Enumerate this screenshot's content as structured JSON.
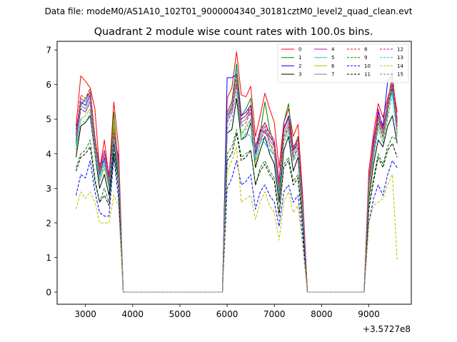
{
  "header_text": "Data file: modeM0/AS1A10_102T01_9000004340_30181cztM0_level2_quad_clean.evt",
  "chart_data": {
    "type": "line",
    "title": "Quadrant 2 module wise count rates with 100.0s bins.",
    "xlabel": "",
    "ylabel": "",
    "x_offset_label": "+3.5727e8",
    "xlim": [
      2400,
      9900
    ],
    "ylim": [
      -0.35,
      7.25
    ],
    "x_ticks": [
      3000,
      4000,
      5000,
      6000,
      7000,
      8000,
      9000
    ],
    "x_tick_labels": [
      "3000",
      "4000",
      "5000",
      "6000",
      "7000",
      "8000",
      "9000"
    ],
    "y_ticks": [
      0,
      1,
      2,
      3,
      4,
      5,
      6,
      7
    ],
    "y_tick_labels": [
      "0",
      "1",
      "2",
      "3",
      "4",
      "5",
      "6",
      "7"
    ],
    "grid": false,
    "legend_placement": "top-right",
    "legend_columns": 4,
    "x": [
      2800,
      2900,
      3000,
      3100,
      3200,
      3300,
      3400,
      3500,
      3600,
      3700,
      3800,
      3900,
      4000,
      4100,
      4200,
      4300,
      4400,
      4500,
      4600,
      4700,
      4800,
      4900,
      5000,
      5100,
      5200,
      5300,
      5400,
      5500,
      5600,
      5700,
      5800,
      5900,
      6000,
      6100,
      6200,
      6300,
      6400,
      6500,
      6600,
      6700,
      6800,
      6900,
      7000,
      7100,
      7200,
      7300,
      7400,
      7500,
      7600,
      7700,
      7800,
      7900,
      8000,
      8100,
      8200,
      8300,
      8400,
      8500,
      8600,
      8700,
      8800,
      8900,
      9000,
      9100,
      9200,
      9300,
      9400,
      9500,
      9600
    ],
    "series": [
      {
        "name": "0",
        "color": "#ff0000",
        "dash": "solid",
        "values": [
          4.8,
          6.25,
          6.1,
          5.9,
          5.3,
          3.5,
          4.4,
          3.3,
          5.5,
          4.2,
          0,
          0,
          0,
          0,
          0,
          0,
          0,
          0,
          0,
          0,
          0,
          0,
          0,
          0,
          0,
          0,
          0,
          0,
          0,
          0,
          0,
          0,
          5.6,
          5.9,
          6.95,
          5.7,
          5.65,
          5.95,
          4.5,
          5.1,
          5.75,
          5.3,
          4.9,
          3.6,
          4.9,
          5.3,
          4.5,
          4.85,
          2.8,
          0,
          0,
          0,
          0,
          0,
          0,
          0,
          0,
          0,
          0,
          0,
          0,
          0,
          3.5,
          4.6,
          5.45,
          5.05,
          5.6,
          6.1,
          5.2
        ]
      },
      {
        "name": "1",
        "color": "#008000",
        "dash": "solid",
        "values": [
          4.3,
          5.4,
          5.6,
          5.8,
          4.5,
          3.4,
          3.9,
          3.2,
          5.2,
          3.5,
          0,
          0,
          0,
          0,
          0,
          0,
          0,
          0,
          0,
          0,
          0,
          0,
          0,
          0,
          0,
          0,
          0,
          0,
          0,
          0,
          0,
          0,
          5.2,
          5.5,
          6.6,
          5.1,
          5.3,
          5.6,
          4.1,
          4.6,
          5.5,
          4.7,
          4.2,
          3.1,
          4.9,
          5.45,
          4.1,
          4.5,
          2.5,
          0,
          0,
          0,
          0,
          0,
          0,
          0,
          0,
          0,
          0,
          0,
          0,
          0,
          3.1,
          4.2,
          5.1,
          4.6,
          5.2,
          5.9,
          4.9
        ]
      },
      {
        "name": "2",
        "color": "#0000ff",
        "dash": "solid",
        "values": [
          4.7,
          5.5,
          5.4,
          5.7,
          4.3,
          3.7,
          3.8,
          3.3,
          4.8,
          3.7,
          0,
          0,
          0,
          0,
          0,
          0,
          0,
          0,
          0,
          0,
          0,
          0,
          0,
          0,
          0,
          0,
          0,
          0,
          0,
          0,
          0,
          0,
          6.2,
          6.2,
          6.3,
          5.1,
          5.2,
          5.4,
          4.0,
          4.7,
          4.6,
          4.5,
          4.3,
          3.0,
          4.7,
          5.1,
          4.1,
          4.3,
          2.6,
          0,
          0,
          0,
          0,
          0,
          0,
          0,
          0,
          0,
          0,
          0,
          0,
          0,
          3.2,
          4.4,
          5.2,
          4.8,
          6.1,
          6.3,
          4.9
        ]
      },
      {
        "name": "3",
        "color": "#000000",
        "dash": "solid",
        "values": [
          3.9,
          4.8,
          4.9,
          5.1,
          4.0,
          3.0,
          3.4,
          2.8,
          4.3,
          3.3,
          0,
          0,
          0,
          0,
          0,
          0,
          0,
          0,
          0,
          0,
          0,
          0,
          0,
          0,
          0,
          0,
          0,
          0,
          0,
          0,
          0,
          0,
          4.6,
          4.7,
          5.6,
          4.4,
          4.5,
          4.9,
          3.6,
          4.1,
          4.5,
          4.0,
          3.7,
          2.6,
          4.1,
          4.5,
          3.5,
          3.9,
          2.2,
          0,
          0,
          0,
          0,
          0,
          0,
          0,
          0,
          0,
          0,
          0,
          0,
          0,
          2.7,
          3.7,
          4.4,
          4.2,
          4.8,
          5.1,
          4.3
        ]
      },
      {
        "name": "4",
        "color": "#bf00bf",
        "dash": "solid",
        "values": [
          4.5,
          5.6,
          5.5,
          5.8,
          4.4,
          3.6,
          4.1,
          3.4,
          4.6,
          3.9,
          0,
          0,
          0,
          0,
          0,
          0,
          0,
          0,
          0,
          0,
          0,
          0,
          0,
          0,
          0,
          0,
          0,
          0,
          0,
          0,
          0,
          0,
          5.0,
          5.3,
          6.0,
          5.0,
          5.1,
          5.3,
          4.2,
          4.6,
          4.9,
          4.6,
          4.4,
          3.2,
          4.8,
          5.0,
          4.2,
          4.4,
          2.7,
          0,
          0,
          0,
          0,
          0,
          0,
          0,
          0,
          0,
          0,
          0,
          0,
          0,
          3.3,
          4.3,
          5.3,
          4.7,
          5.5,
          6.0,
          5.0
        ]
      },
      {
        "name": "5",
        "color": "#17becf",
        "dash": "solid",
        "values": [
          4.2,
          5.3,
          5.2,
          5.5,
          4.2,
          3.3,
          3.8,
          3.1,
          4.7,
          3.6,
          0,
          0,
          0,
          0,
          0,
          0,
          0,
          0,
          0,
          0,
          0,
          0,
          0,
          0,
          0,
          0,
          0,
          0,
          0,
          0,
          0,
          0,
          5.0,
          5.4,
          6.5,
          4.4,
          4.6,
          4.5,
          3.9,
          4.5,
          4.3,
          4.1,
          4.0,
          2.9,
          4.4,
          4.7,
          3.9,
          4.1,
          2.4,
          0,
          0,
          0,
          0,
          0,
          0,
          0,
          0,
          0,
          0,
          0,
          0,
          0,
          3.0,
          4.0,
          4.9,
          4.5,
          5.3,
          5.8,
          4.6
        ]
      },
      {
        "name": "6",
        "color": "#bfbf00",
        "dash": "solid",
        "values": [
          4.0,
          5.0,
          5.1,
          5.3,
          4.1,
          3.2,
          3.6,
          3.0,
          4.9,
          3.4,
          0,
          0,
          0,
          0,
          0,
          0,
          0,
          0,
          0,
          0,
          0,
          0,
          0,
          0,
          0,
          0,
          0,
          0,
          0,
          0,
          0,
          0,
          4.9,
          5.2,
          6.1,
          4.5,
          4.8,
          5.0,
          3.7,
          4.3,
          4.7,
          4.3,
          4.0,
          2.8,
          4.4,
          4.8,
          3.8,
          4.2,
          2.3,
          0,
          0,
          0,
          0,
          0,
          0,
          0,
          0,
          0,
          0,
          0,
          0,
          0,
          2.9,
          3.9,
          4.8,
          4.4,
          5.1,
          6.5,
          4.5
        ]
      },
      {
        "name": "7",
        "color": "#808080",
        "dash": "solid",
        "values": [
          4.4,
          5.4,
          5.3,
          5.6,
          4.3,
          3.5,
          3.9,
          3.2,
          4.6,
          3.7,
          0,
          0,
          0,
          0,
          0,
          0,
          0,
          0,
          0,
          0,
          0,
          0,
          0,
          0,
          0,
          0,
          0,
          0,
          0,
          0,
          0,
          0,
          5.1,
          5.4,
          6.2,
          4.9,
          5.0,
          5.2,
          4.1,
          4.5,
          4.8,
          4.4,
          4.2,
          3.0,
          4.6,
          4.9,
          4.0,
          4.3,
          2.5,
          0,
          0,
          0,
          0,
          0,
          0,
          0,
          0,
          0,
          0,
          0,
          0,
          0,
          3.2,
          4.2,
          5.0,
          4.6,
          5.4,
          6.4,
          4.8
        ]
      },
      {
        "name": "8",
        "color": "#ff0000",
        "dash": "dashed",
        "values": [
          4.6,
          5.7,
          5.6,
          5.9,
          4.5,
          3.6,
          4.0,
          3.3,
          4.7,
          3.8,
          0,
          0,
          0,
          0,
          0,
          0,
          0,
          0,
          0,
          0,
          0,
          0,
          0,
          0,
          0,
          0,
          0,
          0,
          0,
          0,
          0,
          0,
          5.2,
          5.5,
          6.3,
          5.0,
          5.1,
          5.4,
          4.2,
          4.7,
          4.9,
          4.5,
          4.3,
          3.1,
          4.7,
          5.0,
          4.1,
          4.4,
          2.6,
          0,
          0,
          0,
          0,
          0,
          0,
          0,
          0,
          0,
          0,
          0,
          0,
          0,
          3.3,
          4.3,
          5.1,
          4.7,
          5.5,
          6.2,
          4.9
        ]
      },
      {
        "name": "9",
        "color": "#008000",
        "dash": "dashed",
        "values": [
          3.6,
          4.0,
          4.1,
          4.4,
          3.3,
          2.6,
          3.0,
          2.6,
          4.1,
          3.2,
          0,
          0,
          0,
          0,
          0,
          0,
          0,
          0,
          0,
          0,
          0,
          0,
          0,
          0,
          0,
          0,
          0,
          0,
          0,
          0,
          0,
          0,
          4.0,
          4.2,
          4.7,
          3.9,
          4.0,
          4.1,
          3.1,
          3.6,
          3.8,
          3.5,
          3.3,
          2.3,
          3.7,
          3.9,
          3.2,
          3.4,
          2.0,
          0,
          0,
          0,
          0,
          0,
          0,
          0,
          0,
          0,
          0,
          0,
          0,
          0,
          2.5,
          3.3,
          4.0,
          3.7,
          4.2,
          4.5,
          4.4
        ]
      },
      {
        "name": "10",
        "color": "#0000ff",
        "dash": "dashed",
        "values": [
          2.8,
          3.4,
          3.3,
          3.8,
          2.9,
          2.3,
          2.2,
          2.2,
          3.9,
          2.7,
          0,
          0,
          0,
          0,
          0,
          0,
          0,
          0,
          0,
          0,
          0,
          0,
          0,
          0,
          0,
          0,
          0,
          0,
          0,
          0,
          0,
          0,
          3.0,
          3.3,
          3.8,
          3.1,
          3.2,
          3.4,
          2.4,
          2.9,
          3.1,
          2.8,
          2.6,
          1.9,
          2.9,
          3.1,
          2.6,
          2.8,
          1.6,
          0,
          0,
          0,
          0,
          0,
          0,
          0,
          0,
          0,
          0,
          0,
          0,
          0,
          2.0,
          2.7,
          3.1,
          2.8,
          3.4,
          3.8,
          3.6
        ]
      },
      {
        "name": "11",
        "color": "#000000",
        "dash": "dashed",
        "values": [
          3.5,
          3.9,
          4.0,
          4.2,
          3.2,
          2.6,
          2.8,
          2.5,
          4.0,
          3.0,
          0,
          0,
          0,
          0,
          0,
          0,
          0,
          0,
          0,
          0,
          0,
          0,
          0,
          0,
          0,
          0,
          0,
          0,
          0,
          0,
          0,
          0,
          3.8,
          4.0,
          4.6,
          3.8,
          3.9,
          4.1,
          3.1,
          3.5,
          3.7,
          3.4,
          3.2,
          2.2,
          3.6,
          3.8,
          3.1,
          3.3,
          1.9,
          0,
          0,
          0,
          0,
          0,
          0,
          0,
          0,
          0,
          0,
          0,
          0,
          0,
          2.4,
          3.2,
          3.9,
          3.6,
          4.1,
          4.3,
          3.9
        ]
      },
      {
        "name": "12",
        "color": "#bf00bf",
        "dash": "dashed",
        "values": [
          4.4,
          5.3,
          5.2,
          5.5,
          4.2,
          3.4,
          3.9,
          3.1,
          4.5,
          3.6,
          0,
          0,
          0,
          0,
          0,
          0,
          0,
          0,
          0,
          0,
          0,
          0,
          0,
          0,
          0,
          0,
          0,
          0,
          0,
          0,
          0,
          0,
          4.9,
          5.2,
          6.0,
          4.8,
          4.9,
          5.2,
          4.0,
          4.4,
          4.7,
          4.3,
          4.1,
          2.9,
          4.5,
          4.8,
          3.9,
          4.2,
          2.5,
          0,
          0,
          0,
          0,
          0,
          0,
          0,
          0,
          0,
          0,
          0,
          0,
          0,
          3.1,
          4.1,
          4.9,
          4.5,
          5.3,
          6.0,
          4.7
        ]
      },
      {
        "name": "13",
        "color": "#17becf",
        "dash": "dashed",
        "values": [
          4.1,
          5.0,
          4.9,
          5.2,
          4.0,
          3.2,
          3.7,
          3.0,
          4.4,
          3.5,
          0,
          0,
          0,
          0,
          0,
          0,
          0,
          0,
          0,
          0,
          0,
          0,
          0,
          0,
          0,
          0,
          0,
          0,
          0,
          0,
          0,
          0,
          4.7,
          5.0,
          5.8,
          4.6,
          4.7,
          5.0,
          3.8,
          4.3,
          4.5,
          4.2,
          3.9,
          2.8,
          4.3,
          4.6,
          3.8,
          4.0,
          2.4,
          0,
          0,
          0,
          0,
          0,
          0,
          0,
          0,
          0,
          0,
          0,
          0,
          0,
          3.0,
          3.9,
          4.7,
          4.3,
          5.0,
          5.7,
          4.5
        ]
      },
      {
        "name": "14",
        "color": "#bfbf00",
        "dash": "dashed",
        "values": [
          2.4,
          2.9,
          2.7,
          2.9,
          2.6,
          2.0,
          2.0,
          2.0,
          2.8,
          2.5,
          0,
          0,
          0,
          0,
          0,
          0,
          0,
          0,
          0,
          0,
          0,
          0,
          0,
          0,
          0,
          0,
          0,
          0,
          0,
          0,
          0,
          0,
          3.5,
          3.8,
          4.2,
          2.6,
          2.7,
          2.8,
          2.1,
          2.6,
          2.9,
          2.5,
          2.3,
          1.5,
          2.6,
          2.9,
          2.3,
          2.5,
          1.3,
          0,
          0,
          0,
          0,
          0,
          0,
          0,
          0,
          0,
          0,
          0,
          0,
          0,
          2.0,
          2.5,
          2.6,
          2.7,
          3.1,
          3.4,
          0.9
        ]
      },
      {
        "name": "15",
        "color": "#808080",
        "dash": "dashed",
        "values": [
          4.5,
          5.6,
          5.5,
          5.8,
          4.4,
          3.5,
          4.0,
          3.2,
          4.6,
          3.7,
          0,
          0,
          0,
          0,
          0,
          0,
          0,
          0,
          0,
          0,
          0,
          0,
          0,
          0,
          0,
          0,
          0,
          0,
          0,
          0,
          0,
          0,
          5.1,
          5.4,
          6.2,
          4.9,
          5.0,
          5.3,
          4.1,
          4.5,
          4.8,
          4.4,
          4.2,
          3.0,
          4.6,
          4.9,
          4.0,
          4.3,
          2.5,
          0,
          0,
          0,
          0,
          0,
          0,
          0,
          0,
          0,
          0,
          0,
          0,
          0,
          3.2,
          4.2,
          5.0,
          4.6,
          5.4,
          6.1,
          4.8
        ]
      }
    ]
  }
}
